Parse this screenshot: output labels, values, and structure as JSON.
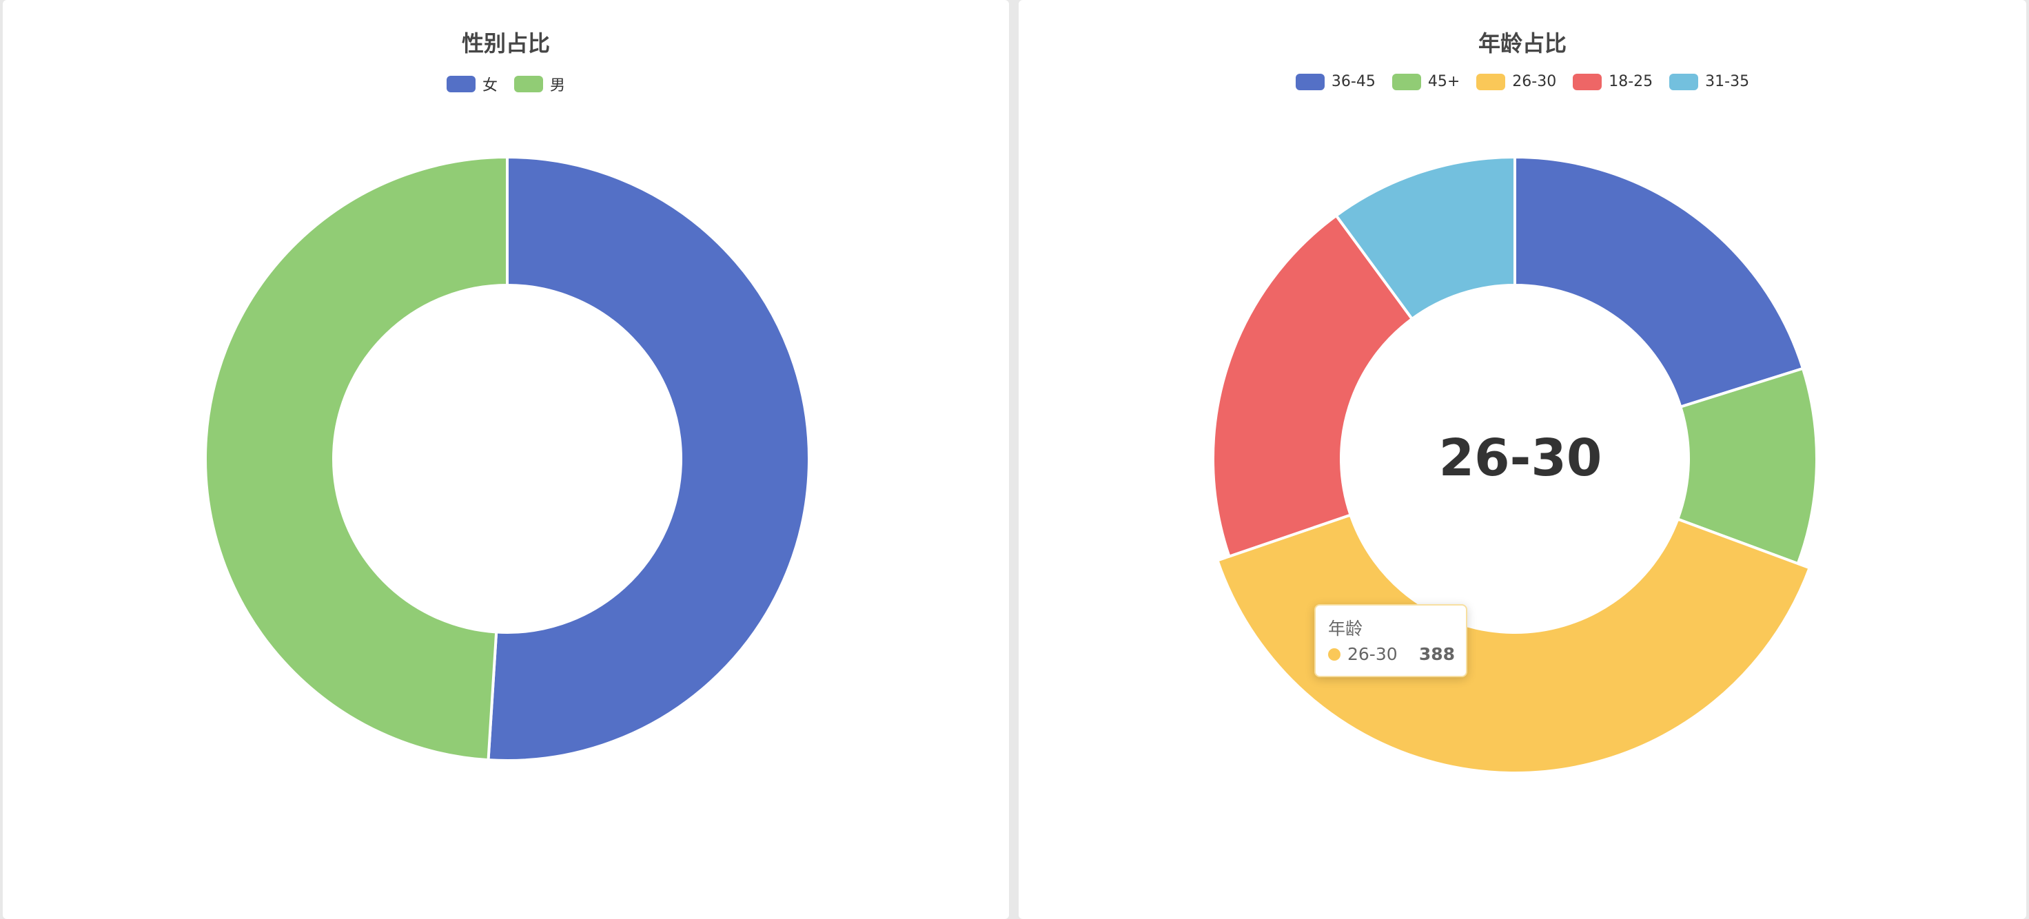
{
  "chart_data": [
    {
      "type": "pie",
      "variant": "donut",
      "title": "性别占比",
      "legend_position": "top-center",
      "categories": [
        "女",
        "男"
      ],
      "values": [
        51,
        49
      ],
      "colors": [
        "#5470c6",
        "#91cc75"
      ]
    },
    {
      "type": "pie",
      "variant": "donut",
      "title": "年龄占比",
      "legend_position": "top-center",
      "categories": [
        "36-45",
        "45+",
        "26-30",
        "18-25",
        "31-35"
      ],
      "values": [
        200,
        104,
        388,
        200,
        100
      ],
      "colors": [
        "#5470c6",
        "#91cc75",
        "#fac858",
        "#ee6666",
        "#73c0de"
      ],
      "highlighted": "26-30",
      "center_label": "26-30",
      "tooltip": {
        "series_name": "年龄",
        "item_name": "26-30",
        "item_value": "388",
        "dot_color": "#fac858"
      }
    }
  ]
}
